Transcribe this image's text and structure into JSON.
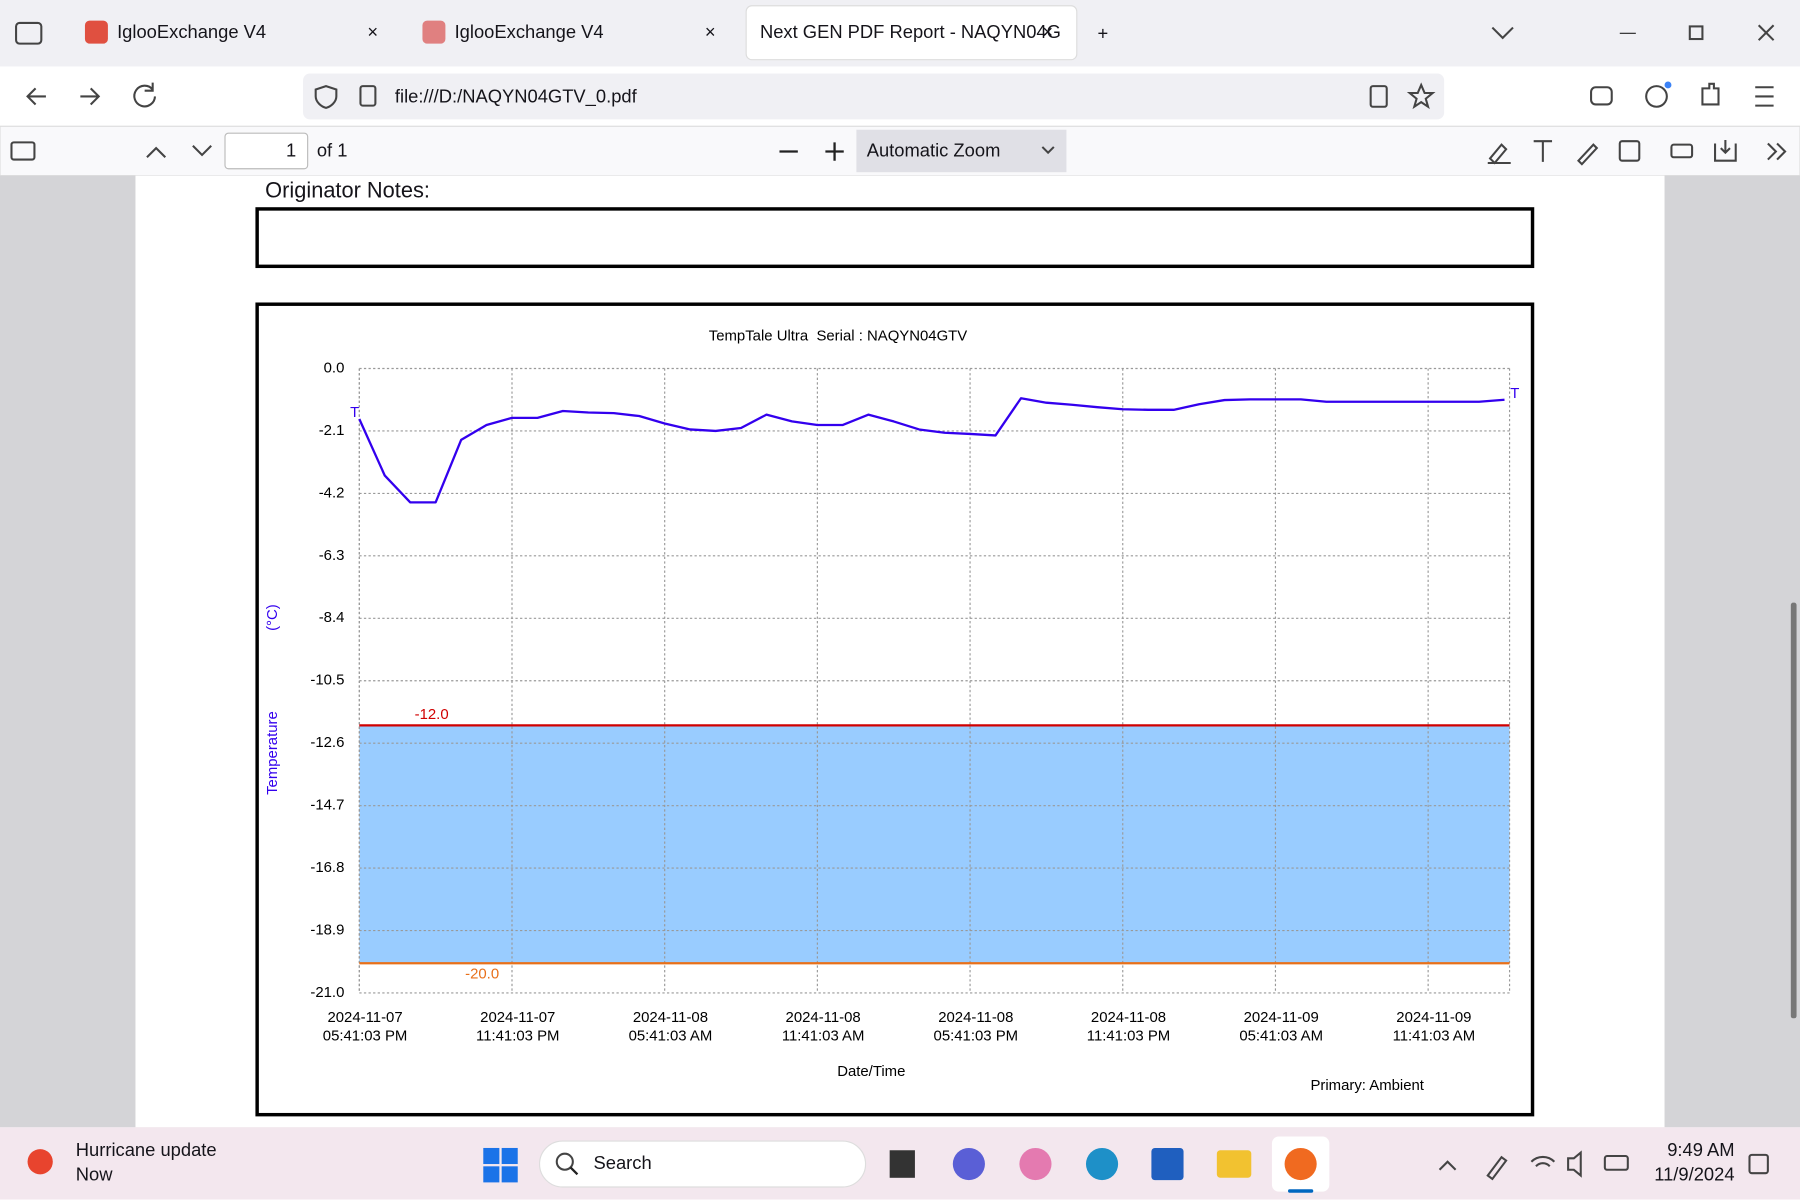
{
  "browser": {
    "tabs": [
      "IglooExchange V4",
      "IglooExchange V4",
      "Next GEN PDF Report - NAQYN04G"
    ],
    "url": "file:///D:/NAQYN04GTV_0.pdf"
  },
  "pdf_toolbar": {
    "page": "1",
    "page_count": "of 1",
    "zoom": "Automatic Zoom"
  },
  "document": {
    "notes_label": "Originator Notes:"
  },
  "taskbar": {
    "notification_title": "Hurricane update",
    "notification_time": "Now",
    "search": "Search",
    "time": "9:49 AM",
    "date": "11/9/2024"
  },
  "chart_data": {
    "type": "line",
    "title": "TempTale Ultra  Serial : NAQYN04GTV",
    "xlabel": "Date/Time",
    "ylabel": "Temperature",
    "yunit": "(°C)",
    "footnote": "Primary: Ambient",
    "end_marker": "T",
    "color": "#3300ee",
    "x": [
      "2024-11-07 17:41:03",
      "2024-11-07 18:41:03",
      "2024-11-07 19:41:03",
      "2024-11-07 20:41:03",
      "2024-11-07 21:41:03",
      "2024-11-07 22:41:03",
      "2024-11-07 23:41:03",
      "2024-11-08 00:41:03",
      "2024-11-08 01:41:03",
      "2024-11-08 02:41:03",
      "2024-11-08 03:41:03",
      "2024-11-08 04:41:03",
      "2024-11-08 05:41:03",
      "2024-11-08 06:41:03",
      "2024-11-08 07:41:03",
      "2024-11-08 08:41:03",
      "2024-11-08 09:41:03",
      "2024-11-08 10:41:03",
      "2024-11-08 11:41:03",
      "2024-11-08 12:41:03",
      "2024-11-08 13:41:03",
      "2024-11-08 14:41:03",
      "2024-11-08 15:41:03",
      "2024-11-08 16:41:03",
      "2024-11-08 17:41:03",
      "2024-11-08 18:41:03",
      "2024-11-08 19:41:03",
      "2024-11-08 20:41:03",
      "2024-11-08 21:41:03",
      "2024-11-08 22:41:03",
      "2024-11-08 23:41:03",
      "2024-11-09 00:41:03",
      "2024-11-09 01:41:03",
      "2024-11-09 02:41:03",
      "2024-11-09 03:41:03",
      "2024-11-09 04:41:03",
      "2024-11-09 05:41:03",
      "2024-11-09 06:41:03",
      "2024-11-09 07:41:03",
      "2024-11-09 08:41:03",
      "2024-11-09 09:41:03",
      "2024-11-09 10:41:03",
      "2024-11-09 11:41:03",
      "2024-11-09 12:41:03",
      "2024-11-09 13:41:03",
      "2024-11-09 14:41:03"
    ],
    "values": [
      -1.7,
      -3.6,
      -4.5,
      -4.5,
      -2.4,
      -1.9,
      -1.66,
      -1.66,
      -1.43,
      -1.48,
      -1.5,
      -1.6,
      -1.85,
      -2.05,
      -2.1,
      -2.0,
      -1.55,
      -1.78,
      -1.9,
      -1.9,
      -1.55,
      -1.78,
      -2.05,
      -2.16,
      -2.2,
      -2.25,
      -1.0,
      -1.15,
      -1.22,
      -1.3,
      -1.37,
      -1.39,
      -1.39,
      -1.2,
      -1.06,
      -1.04,
      -1.04,
      -1.04,
      -1.12,
      -1.12,
      -1.12,
      -1.12,
      -1.12,
      -1.12,
      -1.12,
      -1.05
    ],
    "xlim": [
      "2024-11-07 17:41:03",
      "2024-11-09 14:53:03"
    ],
    "xticks": [
      {
        "value": "2024-11-07 17:41:03",
        "label": [
          "2024-11-07",
          "05:41:03 PM"
        ]
      },
      {
        "value": "2024-11-07 23:41:03",
        "label": [
          "2024-11-07",
          "11:41:03 PM"
        ]
      },
      {
        "value": "2024-11-08 05:41:03",
        "label": [
          "2024-11-08",
          "05:41:03 AM"
        ]
      },
      {
        "value": "2024-11-08 11:41:03",
        "label": [
          "2024-11-08",
          "11:41:03 AM"
        ]
      },
      {
        "value": "2024-11-08 17:41:03",
        "label": [
          "2024-11-08",
          "05:41:03 PM"
        ]
      },
      {
        "value": "2024-11-08 23:41:03",
        "label": [
          "2024-11-08",
          "11:41:03 PM"
        ]
      },
      {
        "value": "2024-11-09 05:41:03",
        "label": [
          "2024-11-09",
          "05:41:03 AM"
        ]
      },
      {
        "value": "2024-11-09 11:41:03",
        "label": [
          "2024-11-09",
          "11:41:03 AM"
        ]
      }
    ],
    "ylim": [
      -21,
      0
    ],
    "yticks": [
      {
        "value": 0,
        "label": "0.0"
      },
      -2.1,
      -4.2,
      -6.3,
      -8.4,
      -10.5,
      -12.6,
      -14.7,
      -16.8,
      -18.9,
      {
        "value": -21,
        "label": "-21.0"
      }
    ],
    "grid": true,
    "thresholds": [
      {
        "value": -12,
        "label": "-12.0",
        "color": "#d00000"
      },
      {
        "value": -20,
        "label": "-20.0",
        "color": "#e8701a"
      }
    ],
    "band_color": "#99ccff"
  }
}
